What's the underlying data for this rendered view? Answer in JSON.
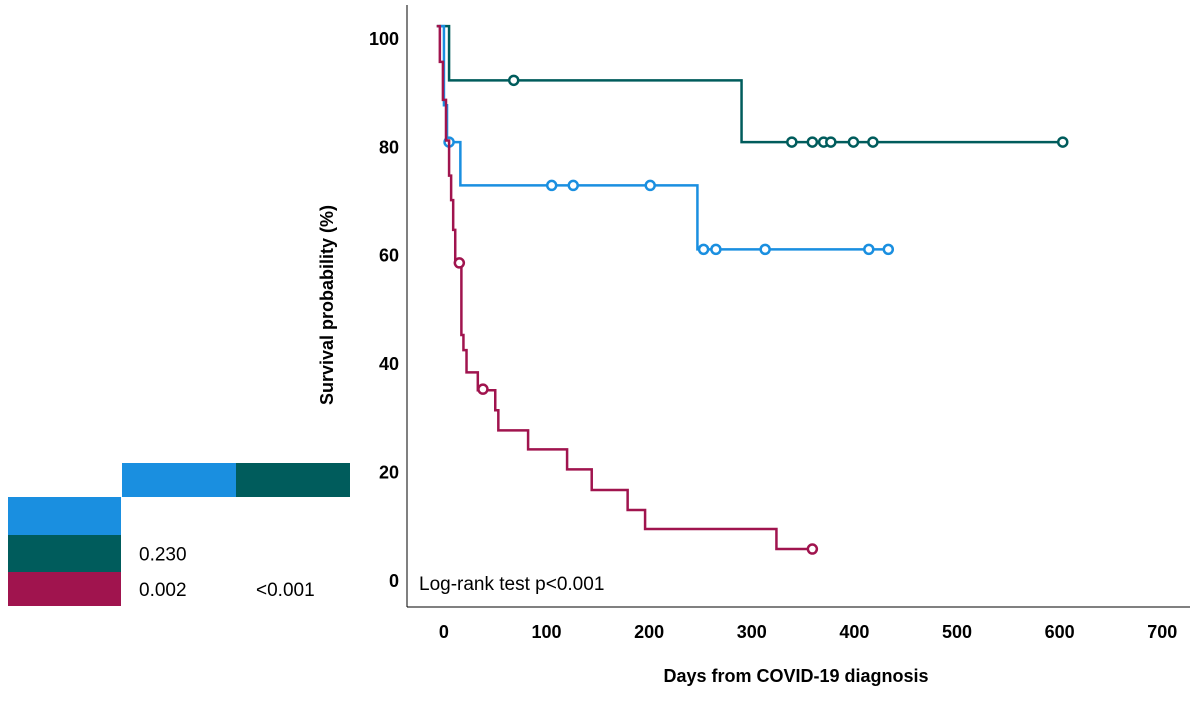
{
  "chart_data": {
    "type": "step",
    "x_label": "Days from COVID-19 diagnosis",
    "y_label": "Survival probability (%)",
    "annotation": "Log-rank test p<0.001",
    "xlim": [
      -36,
      727
    ],
    "ylim": [
      -4.6,
      106.5
    ],
    "xticks": [
      0,
      100,
      200,
      300,
      400,
      500,
      600,
      700
    ],
    "yticks": [
      0,
      20,
      40,
      60,
      80,
      100
    ],
    "grid": false,
    "series": [
      {
        "color": "#005c5c",
        "x": [
          -7,
          5,
          290,
          605
        ],
        "values": [
          102.6,
          92.6,
          81.2,
          81.2
        ],
        "censored_x": [
          68,
          339,
          359,
          370,
          377,
          399,
          418,
          603
        ],
        "censored_values": [
          92.6,
          81.2,
          81.2,
          81.2,
          81.2,
          81.2,
          81.2,
          81.2
        ]
      },
      {
        "color": "#1a8fe0",
        "x": [
          -5,
          0,
          3,
          16,
          247,
          433
        ],
        "values": [
          102.6,
          88,
          81.2,
          73.2,
          61.4,
          61.4
        ],
        "censored_x": [
          5,
          105,
          126,
          201,
          253,
          265,
          313,
          414,
          433
        ],
        "censored_values": [
          81.2,
          73.2,
          73.2,
          73.2,
          61.4,
          61.4,
          61.4,
          61.4,
          61.4
        ]
      },
      {
        "color": "#a0144e",
        "x": [
          -7,
          -4,
          -1,
          2,
          5,
          7,
          9,
          11,
          17,
          19,
          22,
          33,
          50,
          53,
          82,
          120,
          144,
          179,
          196,
          324,
          359
        ],
        "values": [
          102.6,
          96,
          89,
          81.5,
          75,
          70.5,
          65,
          58.9,
          45.6,
          42.8,
          38.7,
          35.4,
          31.7,
          28,
          24.5,
          20.8,
          17,
          13.3,
          9.8,
          6.1,
          6.1
        ],
        "censored_x": [
          15,
          38,
          359
        ],
        "censored_values": [
          58.9,
          35.6,
          6.1
        ]
      }
    ]
  },
  "pvalue_table": {
    "column_colors": [
      "#1a8fe0",
      "#005c5c"
    ],
    "rows": [
      {
        "color": "#1a8fe0",
        "cells": []
      },
      {
        "color": "#005c5c",
        "cells": [
          "0.230"
        ]
      },
      {
        "color": "#a0144e",
        "cells": [
          "0.002",
          "<0.001"
        ]
      }
    ]
  }
}
